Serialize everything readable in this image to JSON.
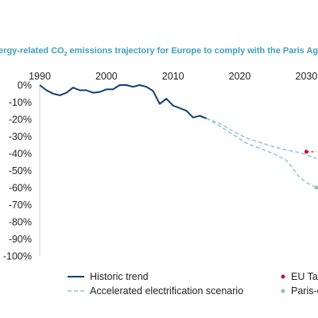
{
  "chart_data": {
    "type": "line",
    "title": "Energy-related CO",
    "title_sub": "2",
    "title_rest": " emissions trajectory for Europe to comply with the Paris Agreement",
    "x_ticks": [
      "1990",
      "2000",
      "2010",
      "2020",
      "2030"
    ],
    "y_ticks": [
      "0%",
      "-10%",
      "-20%",
      "-30%",
      "-40%",
      "-50%",
      "-60%",
      "-70%",
      "-80%",
      "-90%",
      "-100%"
    ],
    "xlim": [
      1990,
      2031.5
    ],
    "ylim": [
      -100,
      0
    ],
    "grid": false,
    "legend_position": "bottom",
    "colors": {
      "historic": "#0e3f6e",
      "accelerated": "#8ec4e0",
      "eu_target": "#c8102e",
      "paris": "#8fc79a",
      "title": "#3fa1b9"
    },
    "series": [
      {
        "name": "Historic trend",
        "style": "solid",
        "x": [
          1990,
          1991,
          1992,
          1993,
          1994,
          1995,
          1996,
          1997,
          1998,
          1999,
          2000,
          2001,
          2002,
          2003,
          2004,
          2005,
          2006,
          2007,
          2008,
          2009,
          2010,
          2011,
          2012,
          2013,
          2014,
          2015
        ],
        "y": [
          0,
          -3,
          -5,
          -6,
          -4.5,
          -1.5,
          -3,
          -3,
          -4.5,
          -4,
          -2.5,
          -2.5,
          0,
          0,
          -1,
          0,
          -1,
          -3.5,
          -11,
          -8,
          -12,
          -13.5,
          -15,
          -19,
          -18,
          -19.5
        ]
      },
      {
        "name": "Accelerated electrification scenario",
        "style": "dashed",
        "lines": [
          {
            "x": [
              2015,
              2017,
              2019,
              2021,
              2023,
              2025,
              2027,
              2029,
              2031.5
            ],
            "y": [
              -19.5,
              -22.5,
              -27,
              -31,
              -33.5,
              -36,
              -38,
              -39.5,
              -43
            ]
          },
          {
            "x": [
              2015,
              2017,
              2019,
              2021,
              2023,
              2025,
              2027,
              2028,
              2029,
              2030,
              2031.5
            ],
            "y": [
              -19.5,
              -24,
              -29,
              -34,
              -37,
              -40,
              -44,
              -49,
              -54,
              -57,
              -60
            ]
          }
        ]
      },
      {
        "name": "EU Targets",
        "style": "marker",
        "x": [
          2030,
          2031.5
        ],
        "y": [
          -39,
          -39
        ]
      },
      {
        "name": "Paris-compatible pathway",
        "style": "marker",
        "x": [
          2031.5
        ],
        "y": [
          -60
        ]
      }
    ],
    "legend": [
      {
        "label": "Historic trend",
        "kind": "solid-line"
      },
      {
        "label": "Accelerated electrification scenario",
        "kind": "dashed-line"
      },
      {
        "label": "EU Targets",
        "kind": "red-dot"
      },
      {
        "label": "Paris-compatible pathway",
        "kind": "green-dot"
      }
    ]
  }
}
